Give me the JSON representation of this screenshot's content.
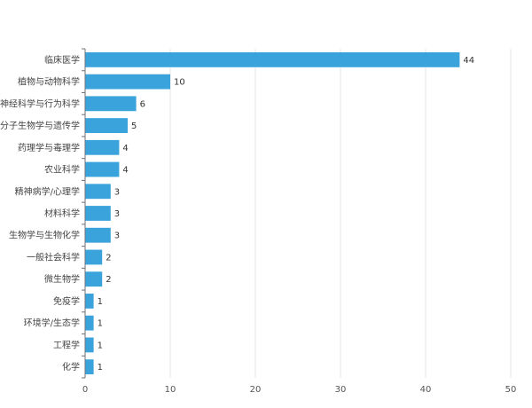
{
  "chart_data": {
    "type": "bar",
    "orientation": "horizontal",
    "categories": [
      "临床医学",
      "植物与动物科学",
      "神经科学与行为科学",
      "分子生物学与遗传学",
      "药理学与毒理学",
      "农业科学",
      "精神病学/心理学",
      "材料科学",
      "生物学与生物化学",
      "一般社会科学",
      "微生物学",
      "免疫学",
      "环境学/生态学",
      "工程学",
      "化学"
    ],
    "values": [
      44,
      10,
      6,
      5,
      4,
      4,
      3,
      3,
      3,
      2,
      2,
      1,
      1,
      1,
      1
    ],
    "xlim": [
      0,
      50
    ],
    "xticks": [
      0,
      10,
      20,
      30,
      40,
      50
    ],
    "grid": true,
    "legend": "none",
    "colors": {
      "bar": "#3ba3dc",
      "grid": "#e6e6e6",
      "axis": "#6e7079"
    }
  }
}
